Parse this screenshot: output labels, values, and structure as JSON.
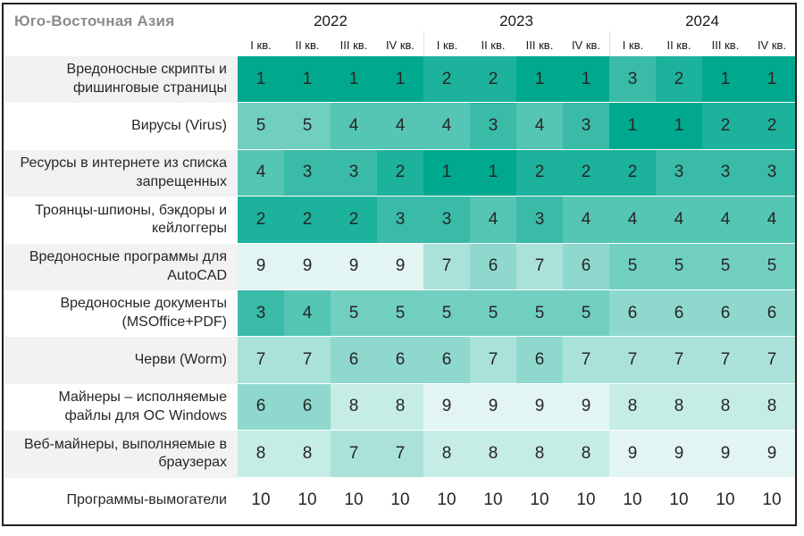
{
  "chart_data": {
    "type": "heatmap",
    "title": "Юго-Восточная Азия",
    "years": [
      "2022",
      "2023",
      "2024"
    ],
    "quarter_labels": [
      "I кв.",
      "II кв.",
      "III кв.",
      "IV кв."
    ],
    "scale": {
      "min": 1,
      "max": 10,
      "min_color": "#00a88e",
      "max_color": "#ffffff",
      "meaning": "rank 1 (darkest) to rank 10 (white)"
    },
    "rows": [
      {
        "label": "Вредоносные скрипты и фишинговые страницы",
        "values": [
          1,
          1,
          1,
          1,
          2,
          2,
          1,
          1,
          3,
          2,
          1,
          1
        ]
      },
      {
        "label": "Вирусы (Virus)",
        "values": [
          5,
          5,
          4,
          4,
          4,
          3,
          4,
          3,
          1,
          1,
          2,
          2
        ]
      },
      {
        "label": "Ресурсы в интернете из списка запрещенных",
        "values": [
          4,
          3,
          3,
          2,
          1,
          1,
          2,
          2,
          2,
          3,
          3,
          3
        ]
      },
      {
        "label": "Троянцы-шпионы, бэкдоры и кейлоггеры",
        "values": [
          2,
          2,
          2,
          3,
          3,
          4,
          3,
          4,
          4,
          4,
          4,
          4
        ]
      },
      {
        "label": "Вредоносные программы для AutoCAD",
        "values": [
          9,
          9,
          9,
          9,
          7,
          6,
          7,
          6,
          5,
          5,
          5,
          5
        ]
      },
      {
        "label": "Вредоносные документы (MSOffice+PDF)",
        "values": [
          3,
          4,
          5,
          5,
          5,
          5,
          5,
          5,
          6,
          6,
          6,
          6
        ]
      },
      {
        "label": "Черви (Worm)",
        "values": [
          7,
          7,
          6,
          6,
          6,
          7,
          6,
          7,
          7,
          7,
          7,
          7
        ]
      },
      {
        "label": "Майнеры – исполняемые файлы для ОС Windows",
        "values": [
          6,
          6,
          8,
          8,
          9,
          9,
          9,
          9,
          8,
          8,
          8,
          8
        ]
      },
      {
        "label": "Веб-майнеры, выполняемые в браузерах",
        "values": [
          8,
          8,
          7,
          7,
          8,
          8,
          8,
          8,
          9,
          9,
          9,
          9
        ]
      },
      {
        "label": "Программы-вымогатели",
        "values": [
          10,
          10,
          10,
          10,
          10,
          10,
          10,
          10,
          10,
          10,
          10,
          10
        ]
      }
    ]
  },
  "colors": {
    "accent": "#00a88e",
    "row_alt_bg": "#f2f2f2",
    "frame_border": "#1f1f1f",
    "title_text": "#8c8c8c",
    "cell_text": "#262626",
    "header_separator": "#e0e0e0"
  }
}
